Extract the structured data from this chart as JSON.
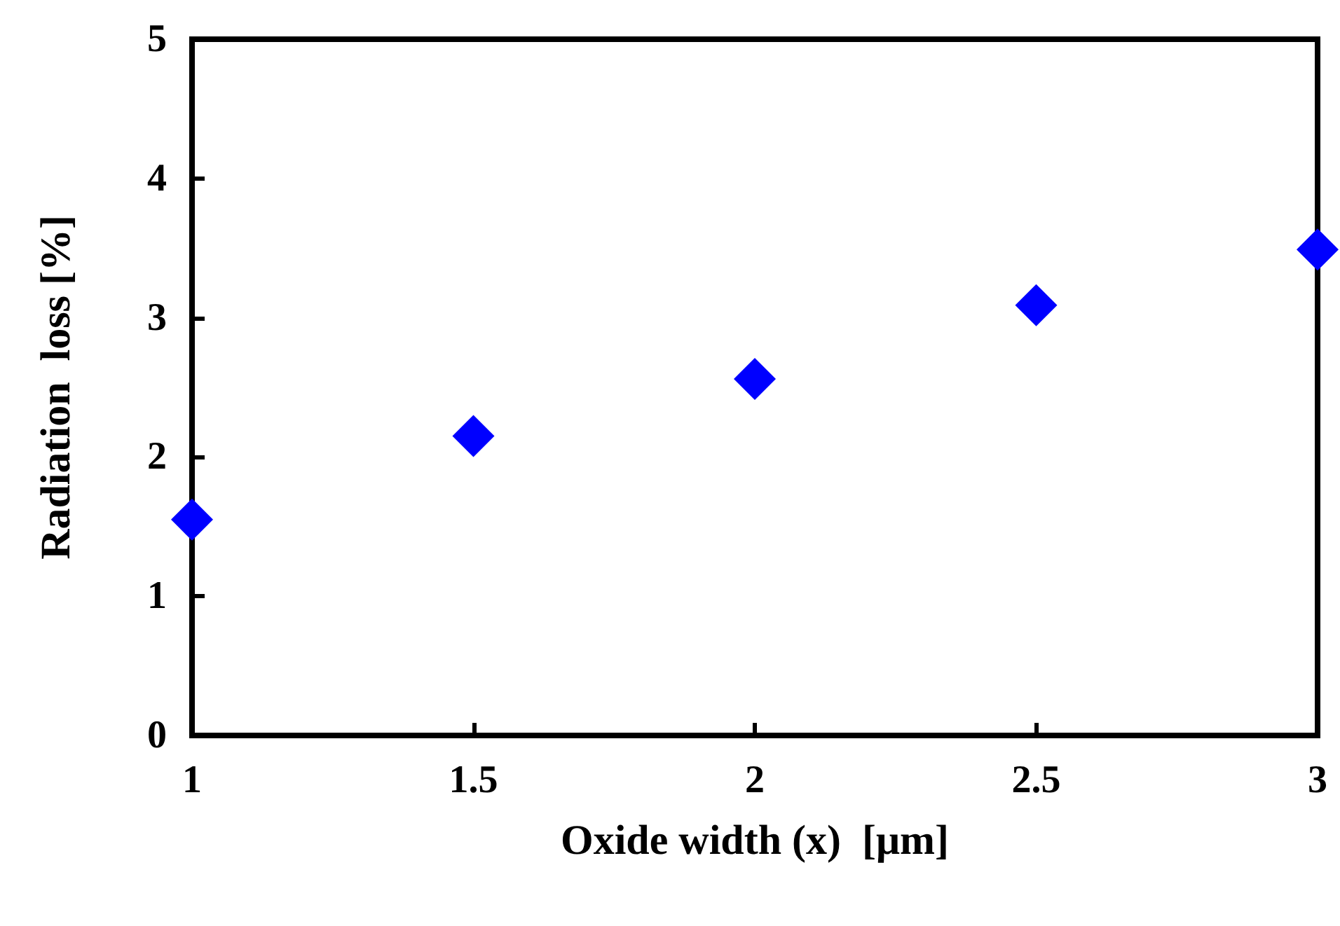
{
  "chart_data": {
    "type": "scatter",
    "xlabel": "Oxide width (x)  [μm]",
    "ylabel": "Radiation  loss [%]",
    "x": [
      1,
      1.5,
      2,
      2.5,
      3
    ],
    "series": [
      {
        "color": "#0000ff",
        "values": [
          1.55,
          2.15,
          2.56,
          3.09,
          3.49
        ]
      }
    ],
    "xlim": [
      1,
      3
    ],
    "xticks": [
      1,
      1.5,
      2,
      2.5,
      3
    ],
    "ylim": [
      0,
      5
    ],
    "yticks": [
      0,
      1,
      2,
      3,
      4,
      5
    ],
    "grid": false,
    "marker": "diamond"
  }
}
